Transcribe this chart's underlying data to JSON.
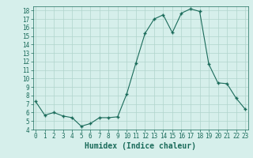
{
  "xlabel": "Humidex (Indice chaleur)",
  "ylabel": "",
  "x": [
    0,
    1,
    2,
    3,
    4,
    5,
    6,
    7,
    8,
    9,
    10,
    11,
    12,
    13,
    14,
    15,
    16,
    17,
    18,
    19,
    20,
    21,
    22,
    23
  ],
  "y": [
    7.3,
    5.7,
    6.0,
    5.6,
    5.4,
    4.4,
    4.7,
    5.4,
    5.4,
    5.5,
    8.2,
    11.8,
    15.3,
    17.0,
    17.5,
    15.4,
    17.7,
    18.2,
    17.9,
    11.7,
    9.5,
    9.4,
    7.7,
    6.4
  ],
  "line_color": "#1a6b5a",
  "marker": "+",
  "marker_size": 3,
  "marker_linewidth": 1.0,
  "line_width": 0.8,
  "bg_color": "#d6efeb",
  "grid_color": "#b0d4cc",
  "tick_color": "#1a6b5a",
  "ylim": [
    4,
    18.5
  ],
  "yticks": [
    4,
    5,
    6,
    7,
    8,
    9,
    10,
    11,
    12,
    13,
    14,
    15,
    16,
    17,
    18
  ],
  "xticks": [
    0,
    1,
    2,
    3,
    4,
    5,
    6,
    7,
    8,
    9,
    10,
    11,
    12,
    13,
    14,
    15,
    16,
    17,
    18,
    19,
    20,
    21,
    22,
    23
  ],
  "xlim": [
    -0.3,
    23.3
  ],
  "font_size": 5.5,
  "label_font_size": 7
}
